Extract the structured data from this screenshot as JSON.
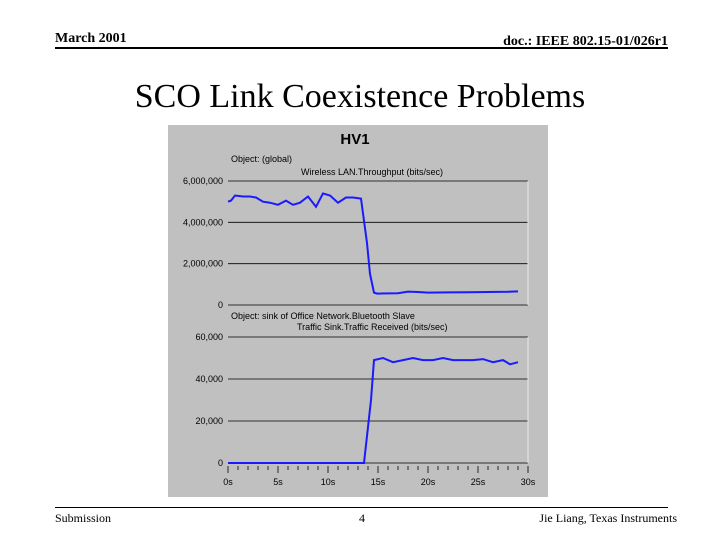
{
  "slide": {
    "date": "March 2001",
    "doc_id": "doc.: IEEE 802.15-01/026r1",
    "title": "SCO Link Coexistence Problems",
    "footer_left": "Submission",
    "page_number": "4",
    "footer_right": "Jie Liang, Texas Instruments"
  },
  "chart_data": [
    {
      "type": "line",
      "title": "HV1",
      "object_label": "Object: (global)",
      "series_label": "Wireless LAN.Throughput (bits/sec)",
      "ylim": [
        0,
        6000000
      ],
      "yticks": [
        0,
        2000000,
        4000000,
        6000000
      ],
      "ytick_labels": [
        "0",
        "2,000,000",
        "4,000,000",
        "6,000,000"
      ],
      "grid": true,
      "color": "#1a1aff",
      "series": [
        {
          "x": [
            0,
            0.3,
            0.7,
            1.5,
            2.2,
            2.8,
            3.5,
            4.2,
            5.0,
            5.8,
            6.5,
            7.2,
            8.0,
            8.8,
            9.5,
            10.2,
            11.0,
            11.8,
            12.5,
            13.3,
            13.9,
            14.2,
            14.6,
            14.9,
            16.0,
            17.0,
            18.0,
            19.0,
            20.0,
            22.0,
            24.0,
            26.0,
            28.0,
            29.0
          ],
          "y": [
            5000000,
            5050000,
            5300000,
            5250000,
            5250000,
            5200000,
            5000000,
            4950000,
            4850000,
            5050000,
            4850000,
            4950000,
            5250000,
            4750000,
            5400000,
            5300000,
            4950000,
            5200000,
            5200000,
            5150000,
            3000000,
            1500000,
            600000,
            550000,
            560000,
            570000,
            650000,
            630000,
            600000,
            610000,
            620000,
            630000,
            640000,
            660000
          ]
        }
      ]
    },
    {
      "type": "line",
      "object_label": "Object: sink of Office Network.Bluetooth Slave",
      "series_label": "Traffic Sink.Traffic Received (bits/sec)",
      "ylim": [
        0,
        60000
      ],
      "yticks": [
        0,
        20000,
        40000,
        60000
      ],
      "ytick_labels": [
        "0",
        "20,000",
        "40,000",
        "60,000"
      ],
      "xlim": [
        0,
        30
      ],
      "xticks": [
        0,
        5,
        10,
        15,
        20,
        25,
        30
      ],
      "xtick_labels": [
        "0s",
        "5s",
        "10s",
        "15s",
        "20s",
        "25s",
        "30s"
      ],
      "grid": true,
      "color": "#1a1aff",
      "series": [
        {
          "x": [
            0,
            5,
            10,
            13.6,
            14.3,
            14.6,
            15.5,
            16.5,
            17.5,
            18.5,
            19.5,
            20.5,
            21.5,
            22.5,
            23.5,
            24.5,
            25.5,
            26.5,
            27.5,
            28.2,
            29.0
          ],
          "y": [
            0,
            0,
            0,
            0,
            30000,
            49000,
            50000,
            48000,
            49000,
            50000,
            49000,
            49000,
            50000,
            49000,
            49000,
            49000,
            49500,
            48000,
            49000,
            47000,
            48000
          ]
        }
      ]
    }
  ]
}
